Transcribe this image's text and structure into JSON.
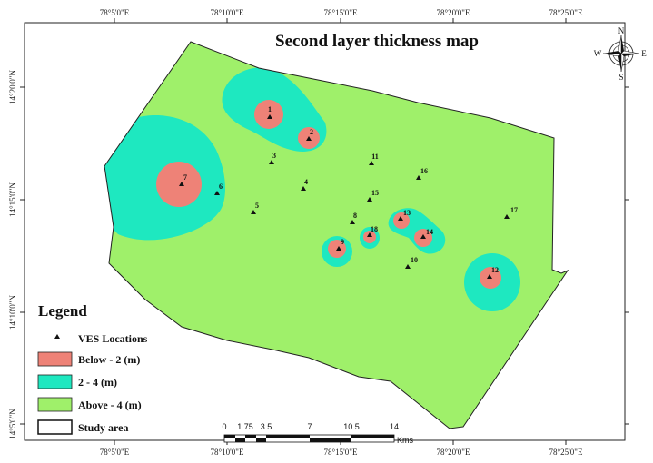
{
  "title": "Second layer thickness map",
  "axes": {
    "top_ticks": [
      "78°5'0\"E",
      "78°10'0\"E",
      "78°15'0\"E",
      "78°20'0\"E",
      "78°25'0\"E"
    ],
    "bottom_ticks": [
      "78°5'0\"E",
      "78°10'0\"E",
      "78°15'0\"E",
      "78°20'0\"E",
      "78°25'0\"E"
    ],
    "left_ticks": [
      "14°20'0\"N",
      "14°15'0\"N",
      "14°10'0\"N",
      "14°5'0\"N"
    ]
  },
  "compass": {
    "n": "N",
    "s": "S",
    "e": "E",
    "w": "W"
  },
  "legend": {
    "title": "Legend",
    "items": [
      {
        "label": "VES Locations",
        "symbol": "triangle",
        "color": "#111111"
      },
      {
        "label": "Below - 2 (m)",
        "symbol": "box",
        "color": "#ee8277"
      },
      {
        "label": "2 - 4 (m)",
        "symbol": "box",
        "color": "#1ee8c0"
      },
      {
        "label": "Above - 4 (m)",
        "symbol": "box",
        "color": "#9ff06a"
      },
      {
        "label": "Study area",
        "symbol": "outline",
        "color": "#ffffff"
      }
    ]
  },
  "scale_bar": {
    "labels": [
      "0",
      "1.75",
      "3.5",
      "7",
      "10.5",
      "14"
    ],
    "unit": "Kms"
  },
  "colors": {
    "below_2": "#ee8277",
    "between_2_4": "#1ee8c0",
    "above_4": "#9ff06a",
    "outline": "#222222"
  },
  "ves_points": [
    {
      "id": "1"
    },
    {
      "id": "2"
    },
    {
      "id": "3"
    },
    {
      "id": "4"
    },
    {
      "id": "5"
    },
    {
      "id": "6"
    },
    {
      "id": "7"
    },
    {
      "id": "8"
    },
    {
      "id": "9"
    },
    {
      "id": "10"
    },
    {
      "id": "11"
    },
    {
      "id": "12"
    },
    {
      "id": "13"
    },
    {
      "id": "14"
    },
    {
      "id": "15"
    },
    {
      "id": "16"
    },
    {
      "id": "17"
    },
    {
      "id": "18"
    }
  ]
}
